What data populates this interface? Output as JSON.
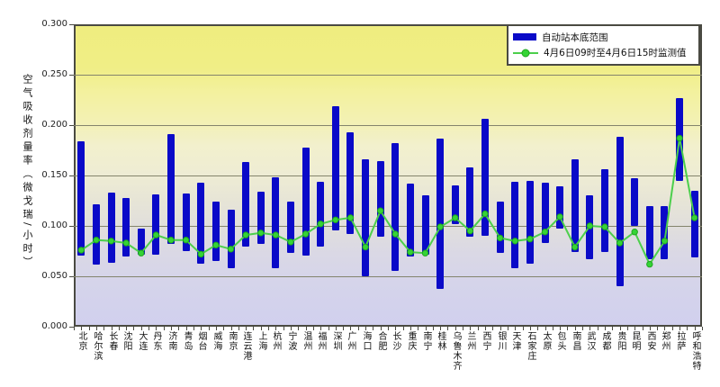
{
  "chart_data": {
    "type": "bar",
    "subtype": "floating-range-bars-with-line-overlay",
    "title": "",
    "ylabel": "空气吸收剂量率（微戈瑞/小时）",
    "xlabel": "",
    "ylim": [
      0,
      0.3
    ],
    "yticks": [
      "0.000",
      "0.050",
      "0.100",
      "0.150",
      "0.200",
      "0.250",
      "0.300"
    ],
    "grid": true,
    "legend_position": "top-right-inside",
    "categories": [
      "北京",
      "哈尔滨",
      "长春",
      "沈阳",
      "大连",
      "丹东",
      "济南",
      "青岛",
      "烟台",
      "威海",
      "南京",
      "连云港",
      "上海",
      "杭州",
      "宁波",
      "温州",
      "福州",
      "深圳",
      "广州",
      "海口",
      "合肥",
      "长沙",
      "重庆",
      "南宁",
      "桂林",
      "乌鲁木齐",
      "兰州",
      "西宁",
      "银川",
      "天津",
      "石家庄",
      "太原",
      "包头",
      "南昌",
      "武汉",
      "成都",
      "贵阳",
      "昆明",
      "西安",
      "郑州",
      "拉萨",
      "呼和浩特"
    ],
    "series": [
      {
        "name": "自动站本底范围",
        "type": "range-bar",
        "low": [
          0.071,
          0.061,
          0.063,
          0.07,
          0.071,
          0.071,
          0.082,
          0.075,
          0.063,
          0.065,
          0.058,
          0.079,
          0.082,
          0.058,
          0.073,
          0.071,
          0.08,
          0.096,
          0.092,
          0.05,
          0.089,
          0.055,
          0.07,
          0.071,
          0.038,
          0.102,
          0.089,
          0.09,
          0.073,
          0.058,
          0.063,
          0.083,
          0.097,
          0.074,
          0.067,
          0.074,
          0.04,
          0.1,
          0.067,
          0.067,
          0.145,
          0.069
        ],
        "high": [
          0.184,
          0.121,
          0.133,
          0.128,
          0.097,
          0.131,
          0.191,
          0.132,
          0.143,
          0.124,
          0.116,
          0.163,
          0.134,
          0.148,
          0.124,
          0.178,
          0.144,
          0.219,
          0.193,
          0.166,
          0.164,
          0.182,
          0.142,
          0.13,
          0.187,
          0.14,
          0.158,
          0.206,
          0.124,
          0.144,
          0.145,
          0.143,
          0.139,
          0.166,
          0.13,
          0.156,
          0.188,
          0.147,
          0.12,
          0.12,
          0.227,
          0.135
        ]
      },
      {
        "name": "4月6日09时至4月6日15时监测值",
        "type": "line",
        "values": [
          0.076,
          0.086,
          0.085,
          0.083,
          0.073,
          0.091,
          0.086,
          0.086,
          0.072,
          0.081,
          0.077,
          0.091,
          0.093,
          0.091,
          0.084,
          0.092,
          0.102,
          0.106,
          0.108,
          0.079,
          0.115,
          0.092,
          0.074,
          0.073,
          0.099,
          0.108,
          0.095,
          0.112,
          0.088,
          0.085,
          0.087,
          0.094,
          0.109,
          0.079,
          0.1,
          0.099,
          0.083,
          0.094,
          0.062,
          0.085,
          0.187,
          0.108
        ]
      }
    ]
  },
  "colors": {
    "bar": "#0a0ac8",
    "line": "#4ccf4c",
    "marker_fill": "#35d435",
    "marker_edge": "#1fa51f",
    "grid": "#84846c",
    "plot_border": "#4a4a42",
    "text": "#111111",
    "background": "#ffffff",
    "plot_band_top": "#efed7f",
    "plot_band_bottom": "#d1d0ee",
    "legend_bg": "#ffffff"
  }
}
